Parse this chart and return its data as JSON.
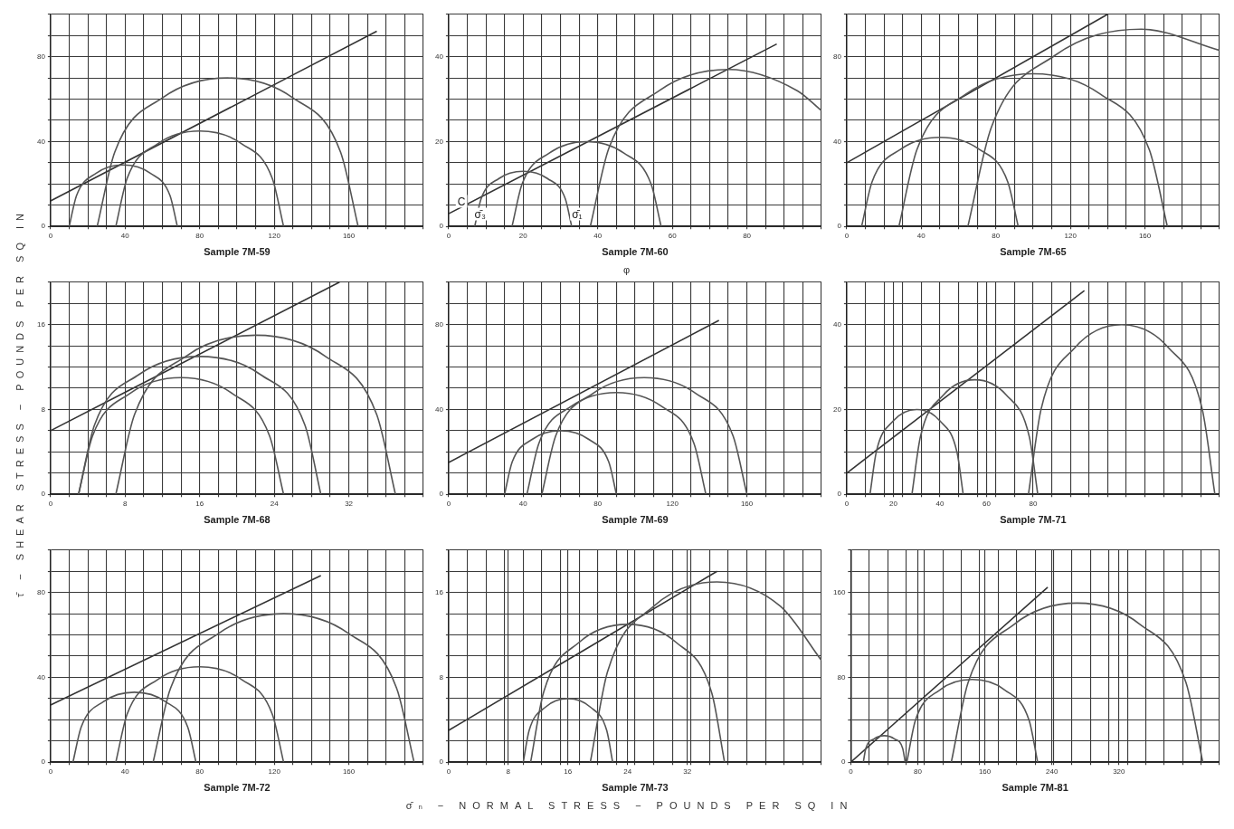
{
  "chart_data": [
    {
      "type": "line",
      "xlabel": "Sample 7M-59",
      "xlim": [
        0,
        200
      ],
      "ylim": [
        0,
        100
      ],
      "grid": true,
      "marker": "none",
      "xticks": [
        0,
        {
          "value": 10,
          "label": null
        },
        {
          "value": 20,
          "label": null
        },
        {
          "value": 30,
          "label": null
        },
        40,
        {
          "value": 50,
          "label": null
        },
        {
          "value": 60,
          "label": null
        },
        {
          "value": 70,
          "label": null
        },
        80,
        {
          "value": 90,
          "label": null
        },
        {
          "value": 100,
          "label": null
        },
        {
          "value": 110,
          "label": null
        },
        120,
        {
          "value": 130,
          "label": null
        },
        {
          "value": 140,
          "label": null
        },
        {
          "value": 150,
          "label": null
        },
        160,
        {
          "value": 170,
          "label": null
        },
        {
          "value": 180,
          "label": null
        },
        {
          "value": 190,
          "label": null
        },
        {
          "value": 200,
          "label": null
        }
      ],
      "yticks": [
        0,
        {
          "value": 10,
          "label": null
        },
        {
          "value": 20,
          "label": null
        },
        {
          "value": 30,
          "label": null
        },
        40,
        {
          "value": 50,
          "label": null
        },
        {
          "value": 60,
          "label": null
        },
        {
          "value": 70,
          "label": null
        },
        80,
        {
          "value": 90,
          "label": null
        },
        {
          "value": 100,
          "label": null
        }
      ],
      "series": [
        {
          "color": "#555555",
          "x": [
            10,
            13.9,
            24.5,
            39,
            53.5,
            64.1,
            68
          ],
          "values": [
            0,
            14.5,
            25.1,
            29,
            25.1,
            14.5,
            0
          ]
        },
        {
          "color": "#555555",
          "x": [
            35,
            41,
            57.5,
            80,
            102.5,
            119,
            125
          ],
          "values": [
            0,
            22.5,
            39,
            45,
            39,
            22.5,
            0
          ]
        },
        {
          "color": "#555555",
          "x": [
            25,
            34.4,
            60,
            95,
            130,
            155.6,
            165
          ],
          "values": [
            0,
            35,
            60.6,
            70,
            60.6,
            35,
            0
          ]
        },
        {
          "color": "#333333",
          "x": [
            0,
            175
          ],
          "values": [
            12,
            92
          ]
        }
      ]
    },
    {
      "type": "line",
      "xlabel": "Sample 7M-60",
      "xlim": [
        0,
        100
      ],
      "ylim": [
        0,
        50
      ],
      "grid": true,
      "marker": "none",
      "xticks": [
        0,
        {
          "value": 5,
          "label": null
        },
        {
          "value": 10,
          "label": null
        },
        {
          "value": 15,
          "label": null
        },
        20,
        {
          "value": 25,
          "label": null
        },
        {
          "value": 30,
          "label": null
        },
        {
          "value": 35,
          "label": null
        },
        40,
        {
          "value": 45,
          "label": null
        },
        {
          "value": 50,
          "label": null
        },
        {
          "value": 55,
          "label": null
        },
        60,
        {
          "value": 65,
          "label": null
        },
        {
          "value": 70,
          "label": null
        },
        {
          "value": 75,
          "label": null
        },
        80,
        {
          "value": 85,
          "label": null
        },
        {
          "value": 90,
          "label": null
        },
        {
          "value": 95,
          "label": null
        },
        {
          "value": 100,
          "label": null
        }
      ],
      "yticks": [
        0,
        {
          "value": 5,
          "label": null
        },
        {
          "value": 10,
          "label": null
        },
        {
          "value": 15,
          "label": null
        },
        20,
        {
          "value": 25,
          "label": null
        },
        {
          "value": 30,
          "label": null
        },
        {
          "value": 35,
          "label": null
        },
        40,
        {
          "value": 45,
          "label": null
        },
        {
          "value": 50,
          "label": null
        }
      ],
      "annotations": [
        {
          "text": "C",
          "x": 2,
          "y": 4
        },
        "φ",
        {
          "text": "σ̄₃",
          "x": 7,
          "y": 1
        },
        {
          "text": "σ̄₁",
          "x": 33,
          "y": 1
        }
      ],
      "series": [
        {
          "color": "#555555",
          "x": [
            7,
            8.7,
            13.5,
            20,
            26.5,
            31.3,
            33
          ],
          "values": [
            0,
            6.5,
            11.3,
            13,
            11.3,
            6.5,
            0
          ]
        },
        {
          "color": "#555555",
          "x": [
            17,
            19.7,
            27,
            37,
            47,
            54.3,
            57
          ],
          "values": [
            0,
            10,
            17.3,
            20,
            17.3,
            10,
            0
          ]
        },
        {
          "color": "#555555",
          "x": [
            38,
            43,
            56.5,
            75,
            93.5,
            100
          ],
          "values": [
            0,
            18.5,
            32,
            37,
            32,
            27.3
          ]
        },
        {
          "color": "#333333",
          "x": [
            0,
            88
          ],
          "values": [
            3,
            43
          ]
        }
      ]
    },
    {
      "type": "line",
      "xlabel": "Sample 7M-65",
      "xlim": [
        0,
        200
      ],
      "ylim": [
        0,
        100
      ],
      "grid": true,
      "marker": "none",
      "xticks": [
        0,
        {
          "value": 10,
          "label": null
        },
        {
          "value": 20,
          "label": null
        },
        {
          "value": 30,
          "label": null
        },
        40,
        {
          "value": 50,
          "label": null
        },
        {
          "value": 60,
          "label": null
        },
        {
          "value": 70,
          "label": null
        },
        80,
        {
          "value": 90,
          "label": null
        },
        {
          "value": 100,
          "label": null
        },
        {
          "value": 110,
          "label": null
        },
        120,
        {
          "value": 130,
          "label": null
        },
        {
          "value": 140,
          "label": null
        },
        {
          "value": 150,
          "label": null
        },
        160,
        {
          "value": 170,
          "label": null
        },
        {
          "value": 180,
          "label": null
        },
        {
          "value": 190,
          "label": null
        },
        {
          "value": 200,
          "label": null
        }
      ],
      "yticks": [
        0,
        {
          "value": 10,
          "label": null
        },
        {
          "value": 20,
          "label": null
        },
        {
          "value": 30,
          "label": null
        },
        40,
        {
          "value": 50,
          "label": null
        },
        {
          "value": 60,
          "label": null
        },
        {
          "value": 70,
          "label": null
        },
        80,
        {
          "value": 90,
          "label": null
        },
        {
          "value": 100,
          "label": null
        }
      ],
      "series": [
        {
          "color": "#555555",
          "x": [
            8,
            13.6,
            29,
            50,
            71,
            86.4,
            92
          ],
          "values": [
            0,
            21,
            36.4,
            42,
            36.4,
            21,
            0
          ]
        },
        {
          "color": "#555555",
          "x": [
            28,
            37.6,
            64,
            100,
            136,
            162.4,
            172
          ],
          "values": [
            0,
            36,
            62.4,
            72,
            62.4,
            36,
            0
          ]
        },
        {
          "color": "#555555",
          "x": [
            65,
            77.5,
            111.5,
            158,
            200
          ],
          "values": [
            0,
            46.5,
            80.5,
            93,
            83
          ]
        },
        {
          "color": "#333333",
          "x": [
            0,
            140
          ],
          "values": [
            30,
            100
          ]
        }
      ]
    },
    {
      "type": "line",
      "xlabel": "Sample 7M-68",
      "xlim": [
        0,
        40
      ],
      "ylim": [
        0,
        20
      ],
      "grid": true,
      "marker": "none",
      "annotations": [
        "τ̄ − SHEAR STRESS − POUNDS PER SQ IN"
      ],
      "xticks": [
        0,
        {
          "value": 2,
          "label": null
        },
        {
          "value": 4,
          "label": null
        },
        {
          "value": 6,
          "label": null
        },
        8,
        {
          "value": 10,
          "label": null
        },
        {
          "value": 12,
          "label": null
        },
        {
          "value": 14,
          "label": null
        },
        16,
        {
          "value": 18,
          "label": null
        },
        {
          "value": 20,
          "label": null
        },
        {
          "value": 22,
          "label": null
        },
        24,
        {
          "value": 26,
          "label": null
        },
        {
          "value": 28,
          "label": null
        },
        {
          "value": 30,
          "label": null
        },
        32,
        {
          "value": 34,
          "label": null
        },
        {
          "value": 36,
          "label": null
        },
        {
          "value": 38,
          "label": null
        },
        {
          "value": 40,
          "label": null
        }
      ],
      "yticks": [
        0,
        {
          "value": 2,
          "label": null
        },
        {
          "value": 4,
          "label": null
        },
        {
          "value": 6,
          "label": null
        },
        8,
        {
          "value": 10,
          "label": null
        },
        {
          "value": 12,
          "label": null
        },
        {
          "value": 14,
          "label": null
        },
        16,
        {
          "value": 18,
          "label": null
        },
        {
          "value": 20,
          "label": null
        }
      ],
      "series": [
        {
          "color": "#555555",
          "x": [
            3,
            4.5,
            8.5,
            14,
            19.5,
            23.5,
            25
          ],
          "values": [
            0,
            5.5,
            9.5,
            11,
            9.5,
            5.5,
            0
          ]
        },
        {
          "color": "#555555",
          "x": [
            3,
            4.7,
            9.5,
            16,
            22.5,
            27.3,
            29
          ],
          "values": [
            0,
            6.5,
            11.3,
            13,
            11.3,
            6.5,
            0
          ]
        },
        {
          "color": "#555555",
          "x": [
            7,
            9,
            14.5,
            22,
            29.5,
            35,
            37
          ],
          "values": [
            0,
            7.5,
            13,
            15,
            13,
            7.5,
            0
          ]
        },
        {
          "color": "#333333",
          "x": [
            0,
            31
          ],
          "values": [
            6,
            20
          ]
        }
      ]
    },
    {
      "type": "line",
      "xlabel": "Sample 7M-69",
      "xlim": [
        0,
        200
      ],
      "ylim": [
        0,
        100
      ],
      "grid": true,
      "marker": "none",
      "xticks": [
        0,
        {
          "value": 10,
          "label": null
        },
        {
          "value": 20,
          "label": null
        },
        {
          "value": 30,
          "label": null
        },
        40,
        {
          "value": 50,
          "label": null
        },
        {
          "value": 60,
          "label": null
        },
        {
          "value": 70,
          "label": null
        },
        80,
        {
          "value": 90,
          "label": null
        },
        {
          "value": 100,
          "label": null
        },
        {
          "value": 110,
          "label": null
        },
        120,
        {
          "value": 130,
          "label": null
        },
        {
          "value": 140,
          "label": null
        },
        {
          "value": 150,
          "label": null
        },
        160,
        {
          "value": 170,
          "label": null
        },
        {
          "value": 180,
          "label": null
        },
        {
          "value": 190,
          "label": null
        },
        {
          "value": 200,
          "label": null
        }
      ],
      "yticks": [
        0,
        {
          "value": 10,
          "label": null
        },
        {
          "value": 20,
          "label": null
        },
        {
          "value": 30,
          "label": null
        },
        40,
        {
          "value": 50,
          "label": null
        },
        {
          "value": 60,
          "label": null
        },
        {
          "value": 70,
          "label": null
        },
        80,
        {
          "value": 90,
          "label": null
        },
        {
          "value": 100,
          "label": null
        }
      ],
      "series": [
        {
          "color": "#555555",
          "x": [
            30,
            34,
            45,
            60,
            75,
            86,
            90
          ],
          "values": [
            0,
            15,
            26,
            30,
            26,
            15,
            0
          ]
        },
        {
          "color": "#555555",
          "x": [
            42,
            48.4,
            66,
            90,
            114,
            131.6,
            138
          ],
          "values": [
            0,
            24,
            41.6,
            48,
            41.6,
            24,
            0
          ]
        },
        {
          "color": "#555555",
          "x": [
            50,
            57.4,
            77.5,
            105,
            132.5,
            152.6,
            160
          ],
          "values": [
            0,
            27.5,
            47.6,
            55,
            47.6,
            27.5,
            0
          ]
        },
        {
          "color": "#333333",
          "x": [
            0,
            145
          ],
          "values": [
            15,
            82
          ]
        }
      ]
    },
    {
      "type": "line",
      "xlabel": "Sample 7M-71",
      "xlim": [
        0,
        160
      ],
      "ylim": [
        0,
        50
      ],
      "grid": true,
      "marker": "none",
      "xticks": [
        0,
        {
          "value": 8,
          "label": null
        },
        {
          "value": 16,
          "label": null
        },
        20,
        {
          "value": 24,
          "label": null
        },
        {
          "value": 32,
          "label": null
        },
        40,
        {
          "value": 48,
          "label": null
        },
        {
          "value": 56,
          "label": null
        },
        60,
        {
          "value": 64,
          "label": null
        },
        {
          "value": 72,
          "label": null
        },
        80,
        {
          "value": 88,
          "label": null
        },
        {
          "value": 96,
          "label": null
        },
        {
          "value": 104,
          "label": null
        },
        {
          "value": 112,
          "label": null
        },
        {
          "value": 120,
          "label": null
        },
        {
          "value": 128,
          "label": null
        },
        {
          "value": 136,
          "label": null
        },
        {
          "value": 144,
          "label": null
        },
        {
          "value": 152,
          "label": null
        },
        {
          "value": 160,
          "label": null
        }
      ],
      "yticks": [
        0,
        {
          "value": 5,
          "label": null
        },
        {
          "value": 10,
          "label": null
        },
        {
          "value": 15,
          "label": null
        },
        20,
        {
          "value": 25,
          "label": null
        },
        {
          "value": 30,
          "label": null
        },
        {
          "value": 35,
          "label": null
        },
        40,
        {
          "value": 45,
          "label": null
        },
        {
          "value": 50,
          "label": null
        }
      ],
      "series": [
        {
          "color": "#555555",
          "x": [
            10,
            12.7,
            20,
            30,
            40,
            47.3,
            50
          ],
          "values": [
            0,
            10,
            17.3,
            20,
            17.3,
            10,
            0
          ]
        },
        {
          "color": "#555555",
          "x": [
            28,
            31.6,
            41.5,
            55,
            68.5,
            78.4,
            82
          ],
          "values": [
            0,
            13.5,
            23.4,
            27,
            23.4,
            13.5,
            0
          ]
        },
        {
          "color": "#555555",
          "x": [
            78,
            83.4,
            98,
            118,
            138,
            152.6,
            158
          ],
          "values": [
            0,
            20,
            34.6,
            40,
            34.6,
            20,
            0
          ]
        },
        {
          "color": "#333333",
          "x": [
            0,
            102
          ],
          "values": [
            5,
            48
          ]
        }
      ]
    },
    {
      "type": "line",
      "xlabel": "Sample 7M-72",
      "xlim": [
        0,
        200
      ],
      "ylim": [
        0,
        100
      ],
      "grid": true,
      "marker": "none",
      "xticks": [
        0,
        {
          "value": 10,
          "label": null
        },
        {
          "value": 20,
          "label": null
        },
        {
          "value": 30,
          "label": null
        },
        40,
        {
          "value": 50,
          "label": null
        },
        {
          "value": 60,
          "label": null
        },
        {
          "value": 70,
          "label": null
        },
        80,
        {
          "value": 90,
          "label": null
        },
        {
          "value": 100,
          "label": null
        },
        {
          "value": 110,
          "label": null
        },
        120,
        {
          "value": 130,
          "label": null
        },
        {
          "value": 140,
          "label": null
        },
        {
          "value": 150,
          "label": null
        },
        160,
        {
          "value": 170,
          "label": null
        },
        {
          "value": 180,
          "label": null
        },
        {
          "value": 190,
          "label": null
        },
        {
          "value": 200,
          "label": null
        }
      ],
      "yticks": [
        0,
        {
          "value": 10,
          "label": null
        },
        {
          "value": 20,
          "label": null
        },
        {
          "value": 30,
          "label": null
        },
        40,
        {
          "value": 50,
          "label": null
        },
        {
          "value": 60,
          "label": null
        },
        {
          "value": 70,
          "label": null
        },
        80,
        {
          "value": 90,
          "label": null
        },
        {
          "value": 100,
          "label": null
        }
      ],
      "series": [
        {
          "color": "#555555",
          "x": [
            12,
            16.4,
            28.5,
            45,
            61.5,
            73.6,
            78
          ],
          "values": [
            0,
            16.5,
            28.6,
            33,
            28.6,
            16.5,
            0
          ]
        },
        {
          "color": "#555555",
          "x": [
            35,
            41,
            57.5,
            80,
            102.5,
            119,
            125
          ],
          "values": [
            0,
            22.5,
            39,
            45,
            39,
            22.5,
            0
          ]
        },
        {
          "color": "#555555",
          "x": [
            55,
            64.4,
            90,
            125,
            160,
            185.6,
            195
          ],
          "values": [
            0,
            35,
            60.6,
            70,
            60.6,
            35,
            0
          ]
        },
        {
          "color": "#333333",
          "x": [
            0,
            145
          ],
          "values": [
            27,
            88
          ]
        }
      ]
    },
    {
      "type": "line",
      "xlabel": "Sample 7M-73",
      "xlim": [
        0,
        50
      ],
      "ylim": [
        0,
        20
      ],
      "grid": true,
      "marker": "none",
      "annotations": [
        "σ̄ₙ − NORMAL STRESS − POUNDS PER SQ IN"
      ],
      "xticks": [
        0,
        {
          "value": 2.5,
          "label": null
        },
        {
          "value": 5,
          "label": null
        },
        {
          "value": 7.5,
          "label": null
        },
        8,
        {
          "value": 10,
          "label": null
        },
        {
          "value": 12.5,
          "label": null
        },
        {
          "value": 15,
          "label": null
        },
        16,
        {
          "value": 17.5,
          "label": null
        },
        {
          "value": 20,
          "label": null
        },
        {
          "value": 22.5,
          "label": null
        },
        24,
        {
          "value": 25,
          "label": null
        },
        {
          "value": 27.5,
          "label": null
        },
        {
          "value": 30,
          "label": null
        },
        32,
        {
          "value": 32.5,
          "label": null
        },
        {
          "value": 35,
          "label": null
        },
        {
          "value": 37.5,
          "label": null
        },
        {
          "value": 40,
          "label": null
        },
        {
          "value": 42.5,
          "label": null
        },
        {
          "value": 45,
          "label": null
        },
        {
          "value": 47.5,
          "label": null
        },
        {
          "value": 50,
          "label": null
        }
      ],
      "yticks": [
        0,
        {
          "value": 2,
          "label": null
        },
        {
          "value": 4,
          "label": null
        },
        {
          "value": 6,
          "label": null
        },
        8,
        {
          "value": 10,
          "label": null
        },
        {
          "value": 12,
          "label": null
        },
        {
          "value": 14,
          "label": null
        },
        16,
        {
          "value": 18,
          "label": null
        },
        {
          "value": 20,
          "label": null
        }
      ],
      "series": [
        {
          "color": "#555555",
          "x": [
            10,
            10.8,
            13,
            16,
            19,
            21.2,
            22
          ],
          "values": [
            0,
            3,
            5.2,
            6,
            5.2,
            3,
            0
          ]
        },
        {
          "color": "#555555",
          "x": [
            11,
            12.7,
            17.5,
            24,
            30.5,
            35.3,
            37
          ],
          "values": [
            0,
            6.5,
            11.3,
            13,
            11.3,
            6.5,
            0
          ]
        },
        {
          "color": "#555555",
          "x": [
            19,
            21.3,
            27.5,
            36,
            44.5,
            50
          ],
          "values": [
            0,
            8.5,
            14.7,
            17,
            14.7,
            9.6
          ]
        },
        {
          "color": "#333333",
          "x": [
            0,
            36
          ],
          "values": [
            3,
            18
          ]
        }
      ]
    },
    {
      "type": "line",
      "xlabel": "Sample 7M-81",
      "xlim": [
        0,
        440
      ],
      "ylim": [
        0,
        200
      ],
      "grid": true,
      "marker": "none",
      "xticks": [
        0,
        {
          "value": 22,
          "label": null
        },
        {
          "value": 44,
          "label": null
        },
        {
          "value": 66,
          "label": null
        },
        80,
        {
          "value": 88,
          "label": null
        },
        {
          "value": 110,
          "label": null
        },
        {
          "value": 132,
          "label": null
        },
        {
          "value": 154,
          "label": null
        },
        160,
        {
          "value": 176,
          "label": null
        },
        {
          "value": 198,
          "label": null
        },
        {
          "value": 220,
          "label": null
        },
        240,
        {
          "value": 242,
          "label": null
        },
        {
          "value": 264,
          "label": null
        },
        {
          "value": 286,
          "label": null
        },
        {
          "value": 308,
          "label": null
        },
        320,
        {
          "value": 330,
          "label": null
        },
        {
          "value": 352,
          "label": null
        },
        {
          "value": 374,
          "label": null
        },
        {
          "value": 396,
          "label": null
        },
        {
          "value": 418,
          "label": null
        },
        {
          "value": 440,
          "label": null
        }
      ],
      "yticks": [
        0,
        {
          "value": 20,
          "label": null
        },
        {
          "value": 40,
          "label": null
        },
        {
          "value": 60,
          "label": null
        },
        80,
        {
          "value": 100,
          "label": null
        },
        {
          "value": 120,
          "label": null
        },
        {
          "value": 140,
          "label": null
        },
        160,
        {
          "value": 180,
          "label": null
        },
        {
          "value": 200,
          "label": null
        }
      ],
      "series": [
        {
          "color": "#555555",
          "x": [
            15,
            18,
            28,
            40,
            52,
            62,
            65
          ],
          "values": [
            0,
            13,
            22,
            25,
            22,
            13,
            0
          ]
        },
        {
          "color": "#555555",
          "x": [
            67,
            77,
            106,
            145,
            184,
            213,
            223
          ],
          "values": [
            0,
            39,
            68,
            78,
            68,
            39,
            0
          ]
        },
        {
          "color": "#555555",
          "x": [
            120,
            140,
            195,
            270,
            345,
            400,
            420
          ],
          "values": [
            0,
            75,
            130,
            150,
            130,
            75,
            0
          ]
        },
        {
          "color": "#333333",
          "x": [
            0,
            235
          ],
          "values": [
            0,
            165
          ]
        }
      ]
    }
  ]
}
